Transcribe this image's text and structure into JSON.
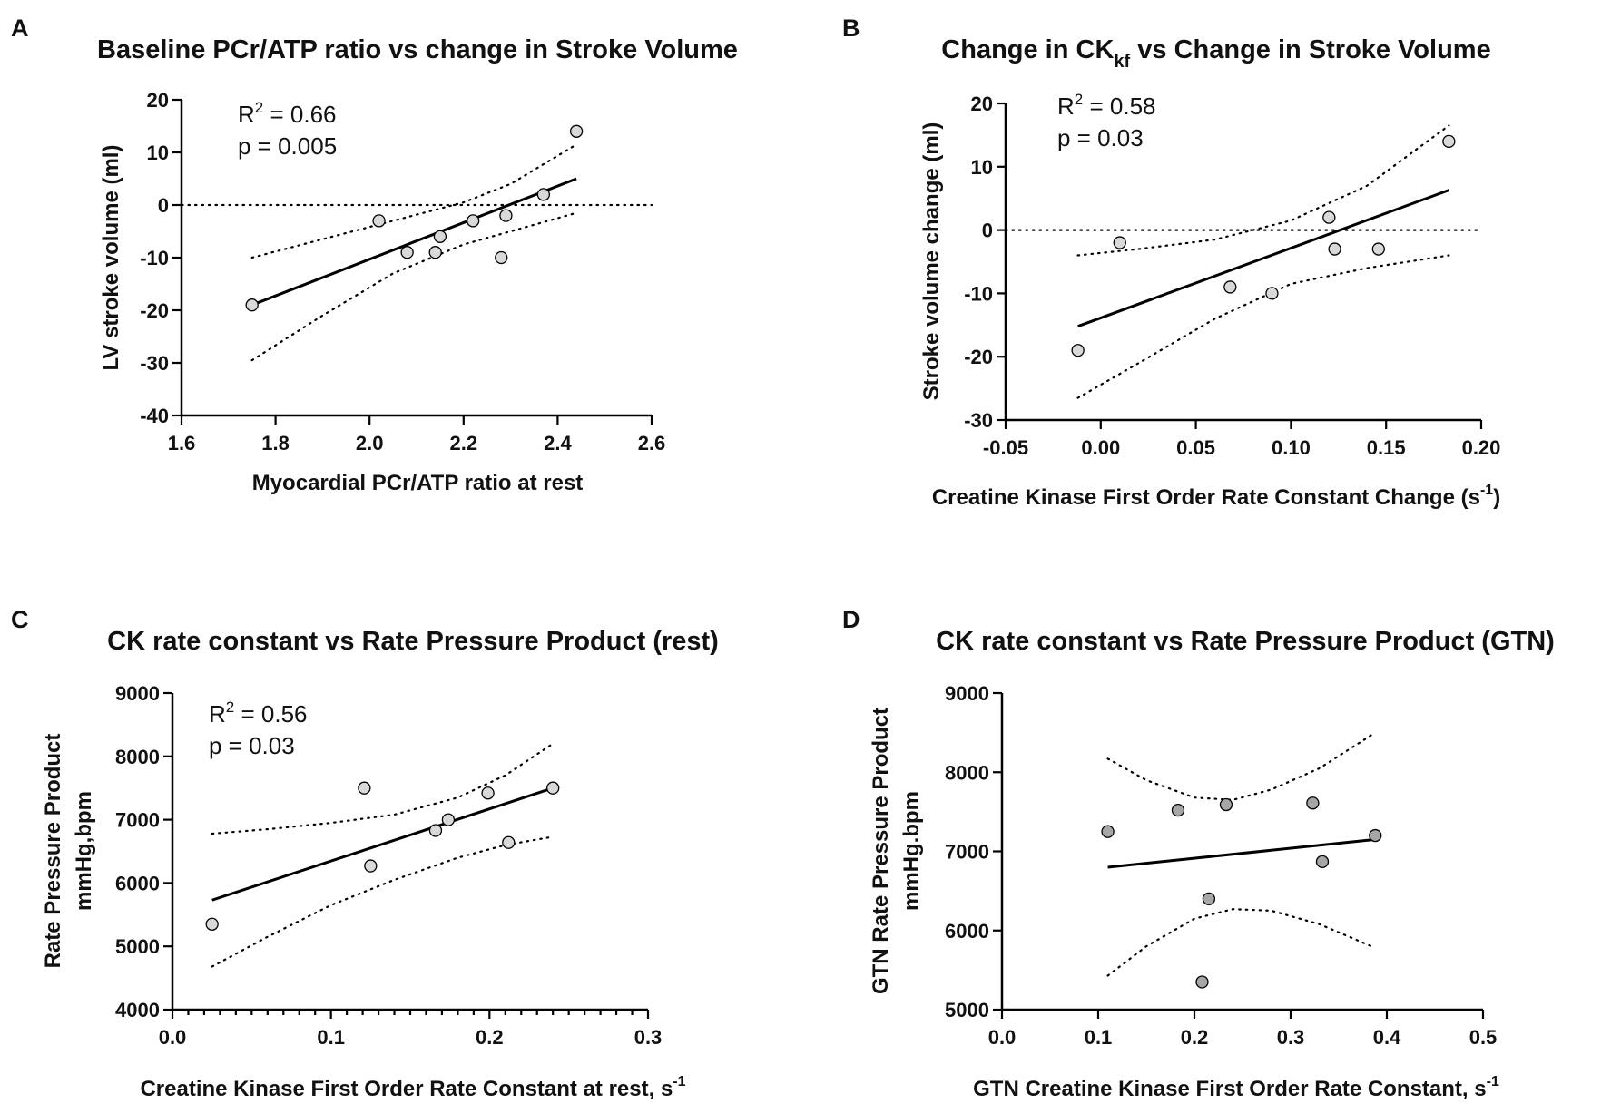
{
  "chart_data": [
    {
      "panel": "A",
      "type": "scatter",
      "title": "Baseline PCr/ATP ratio vs change in Stroke Volume",
      "xlabel": "Myocardial PCr/ATP ratio at rest",
      "ylabel": "LV stroke volume (ml)",
      "xlim": [
        1.6,
        2.6
      ],
      "ylim": [
        -40,
        20
      ],
      "xticks": [
        "1.6",
        "1.8",
        "2.0",
        "2.2",
        "2.4",
        "2.6"
      ],
      "yticks": [
        "-40",
        "-30",
        "-20",
        "-10",
        "0",
        "10",
        "20"
      ],
      "zero_line": [
        1.6,
        2.6
      ],
      "stats": {
        "r2_prefix": "R",
        "r2_sup": "2",
        "r2_value": " = 0.66",
        "p_text": "p = 0.005"
      },
      "marker_color": "#d9d9d9",
      "points": [
        {
          "x": 1.75,
          "y": -19
        },
        {
          "x": 2.02,
          "y": -3
        },
        {
          "x": 2.08,
          "y": -9
        },
        {
          "x": 2.14,
          "y": -9
        },
        {
          "x": 2.15,
          "y": -6
        },
        {
          "x": 2.22,
          "y": -3
        },
        {
          "x": 2.28,
          "y": -10
        },
        {
          "x": 2.29,
          "y": -2
        },
        {
          "x": 2.37,
          "y": 2
        },
        {
          "x": 2.44,
          "y": 14
        }
      ],
      "fit": {
        "x": [
          1.75,
          2.44
        ],
        "y": [
          -19,
          5
        ]
      },
      "ci_upper": {
        "x": [
          1.75,
          1.9,
          2.05,
          2.2,
          2.3,
          2.44
        ],
        "y": [
          -10,
          -6.5,
          -3,
          0.5,
          4,
          11.5
        ]
      },
      "ci_lower": {
        "x": [
          1.75,
          1.9,
          2.05,
          2.2,
          2.3,
          2.44
        ],
        "y": [
          -29.5,
          -21,
          -13,
          -7.5,
          -5,
          -1.5
        ]
      }
    },
    {
      "panel": "B",
      "type": "scatter",
      "title_main": "Change in  CK",
      "title_sub": "kf",
      "title_rest": " vs Change in Stroke Volume",
      "xlabel_main": "Creatine Kinase   First Order   Rate   Constant   Change  (s",
      "xlabel_sup": "-1",
      "xlabel_end": ")",
      "ylabel": "Stroke volume change (ml)",
      "xlim": [
        -0.05,
        0.2
      ],
      "ylim": [
        -30,
        20
      ],
      "xticks": [
        "-0.05",
        "0.00",
        "0.05",
        "0.10",
        "0.15",
        "0.20"
      ],
      "yticks": [
        "-30",
        "-20",
        "-10",
        "0",
        "10",
        "20"
      ],
      "zero_line": [
        -0.05,
        0.2
      ],
      "stats": {
        "r2_prefix": "R",
        "r2_sup": "2",
        "r2_value": " = 0.58",
        "p_text": "p = 0.03"
      },
      "marker_color": "#d9d9d9",
      "points": [
        {
          "x": -0.012,
          "y": -19
        },
        {
          "x": 0.01,
          "y": -2
        },
        {
          "x": 0.068,
          "y": -9
        },
        {
          "x": 0.09,
          "y": -10
        },
        {
          "x": 0.12,
          "y": 2
        },
        {
          "x": 0.123,
          "y": -3
        },
        {
          "x": 0.146,
          "y": -3
        },
        {
          "x": 0.183,
          "y": 14
        }
      ],
      "fit": {
        "x": [
          -0.012,
          0.183
        ],
        "y": [
          -15.2,
          6.3
        ]
      },
      "ci_upper": {
        "x": [
          -0.012,
          0.02,
          0.06,
          0.1,
          0.14,
          0.183
        ],
        "y": [
          -4,
          -3,
          -1.5,
          1.5,
          7,
          16.5
        ]
      },
      "ci_lower": {
        "x": [
          -0.012,
          0.02,
          0.06,
          0.1,
          0.14,
          0.183
        ],
        "y": [
          -26.5,
          -21,
          -14,
          -8.5,
          -6,
          -4
        ]
      }
    },
    {
      "panel": "C",
      "type": "scatter",
      "title": "CK rate constant vs Rate Pressure Product (rest)",
      "xlabel_main": "Creatine   Kinase   First Order   Rate   Constant at rest, s",
      "xlabel_sup": "-1",
      "ylabel_line1": "Rate Pressure  Product",
      "ylabel_line2": "mmHg,bpm",
      "xlim": [
        0,
        0.3
      ],
      "ylim": [
        4000,
        9000
      ],
      "xticks": [
        "0.0",
        "0.1",
        "0.2",
        "0.3"
      ],
      "yticks": [
        "4000",
        "5000",
        "6000",
        "7000",
        "8000",
        "9000"
      ],
      "stats": {
        "r2_prefix": "R",
        "r2_sup": "2",
        "r2_value": " = 0.56",
        "p_text": "p = 0.03"
      },
      "marker_color": "#d9d9d9",
      "points": [
        {
          "x": 0.025,
          "y": 5350
        },
        {
          "x": 0.121,
          "y": 7500
        },
        {
          "x": 0.125,
          "y": 6270
        },
        {
          "x": 0.166,
          "y": 6830
        },
        {
          "x": 0.174,
          "y": 7000
        },
        {
          "x": 0.199,
          "y": 7420
        },
        {
          "x": 0.212,
          "y": 6640
        },
        {
          "x": 0.24,
          "y": 7500
        }
      ],
      "fit": {
        "x": [
          0.025,
          0.24
        ],
        "y": [
          5730,
          7500
        ]
      },
      "ci_upper": {
        "x": [
          0.025,
          0.06,
          0.1,
          0.14,
          0.18,
          0.21,
          0.24
        ],
        "y": [
          6780,
          6850,
          6950,
          7080,
          7350,
          7700,
          8200
        ]
      },
      "ci_lower": {
        "x": [
          0.025,
          0.06,
          0.1,
          0.14,
          0.18,
          0.21,
          0.24
        ],
        "y": [
          4680,
          5150,
          5650,
          6050,
          6400,
          6600,
          6730
        ]
      }
    },
    {
      "panel": "D",
      "type": "scatter",
      "title": "CK rate constant vs Rate Pressure Product (GTN)",
      "xlabel_main": "GTN Creatine   Kinase   First   Order Rate   Constant, s",
      "xlabel_sup": "-1",
      "ylabel_line1": "GTN Rate Pressure Product",
      "ylabel_line2": "mmHg.bpm",
      "xlim": [
        0,
        0.5
      ],
      "ylim": [
        5000,
        9000
      ],
      "xticks": [
        "0.0",
        "0.1",
        "0.2",
        "0.3",
        "0.4",
        "0.5"
      ],
      "yticks": [
        "5000",
        "6000",
        "7000",
        "8000",
        "9000"
      ],
      "marker_color": "#a6a6a6",
      "points": [
        {
          "x": 0.11,
          "y": 7250
        },
        {
          "x": 0.183,
          "y": 7520
        },
        {
          "x": 0.208,
          "y": 5350
        },
        {
          "x": 0.215,
          "y": 6400
        },
        {
          "x": 0.233,
          "y": 7590
        },
        {
          "x": 0.323,
          "y": 7610
        },
        {
          "x": 0.333,
          "y": 6870
        },
        {
          "x": 0.388,
          "y": 7200
        }
      ],
      "fit": {
        "x": [
          0.11,
          0.388
        ],
        "y": [
          6800,
          7150
        ]
      },
      "ci_upper": {
        "x": [
          0.11,
          0.15,
          0.2,
          0.24,
          0.28,
          0.33,
          0.388
        ],
        "y": [
          8170,
          7900,
          7680,
          7650,
          7780,
          8050,
          8500
        ]
      },
      "ci_lower": {
        "x": [
          0.11,
          0.15,
          0.2,
          0.24,
          0.28,
          0.33,
          0.388
        ],
        "y": [
          5430,
          5800,
          6150,
          6270,
          6250,
          6080,
          5780
        ]
      }
    }
  ]
}
